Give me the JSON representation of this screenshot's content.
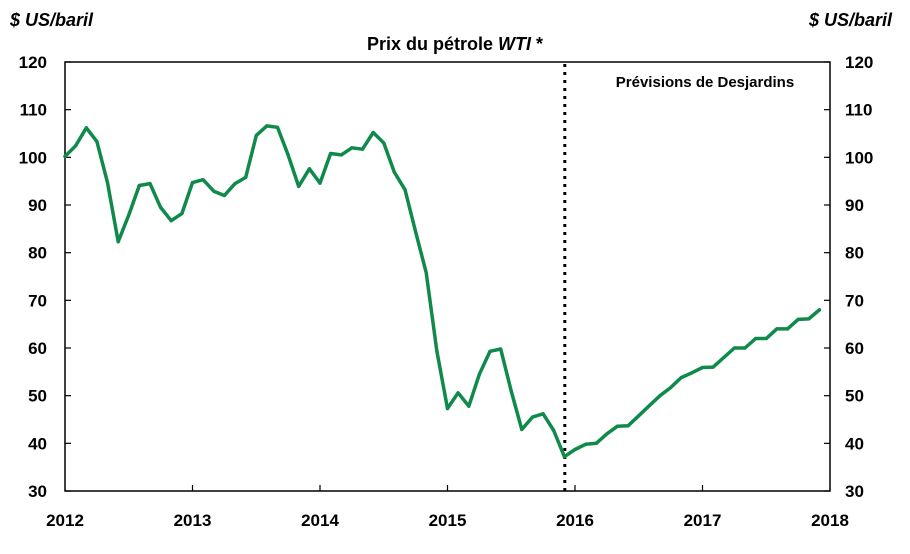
{
  "chart_data": {
    "type": "line",
    "title_prefix": "Prix du pétrole ",
    "title_emph": "WTI",
    "title_suffix": " *",
    "ylabel_left": "$ US/baril",
    "ylabel_right": "$ US/baril",
    "annotation": "Prévisions de Desjardins",
    "ylim": [
      30,
      120
    ],
    "yticks": [
      30,
      40,
      50,
      60,
      70,
      80,
      90,
      100,
      110,
      120
    ],
    "xlim": [
      2012,
      2018
    ],
    "xticks": [
      "2012",
      "2013",
      "2014",
      "2015",
      "2016",
      "2017",
      "2018"
    ],
    "forecast_start": 2015.92,
    "line_color": "#0f8a4a",
    "series": [
      {
        "name": "WTI",
        "x": [
          2012.0,
          2012.083,
          2012.167,
          2012.25,
          2012.333,
          2012.417,
          2012.5,
          2012.583,
          2012.667,
          2012.75,
          2012.833,
          2012.917,
          2013.0,
          2013.083,
          2013.167,
          2013.25,
          2013.333,
          2013.417,
          2013.5,
          2013.583,
          2013.667,
          2013.75,
          2013.833,
          2013.917,
          2014.0,
          2014.083,
          2014.167,
          2014.25,
          2014.333,
          2014.417,
          2014.5,
          2014.583,
          2014.667,
          2014.75,
          2014.833,
          2014.917,
          2015.0,
          2015.083,
          2015.167,
          2015.25,
          2015.333,
          2015.417,
          2015.5,
          2015.583,
          2015.667,
          2015.75,
          2015.833,
          2015.917,
          2016.0,
          2016.083,
          2016.167,
          2016.25,
          2016.333,
          2016.417,
          2016.5,
          2016.583,
          2016.667,
          2016.75,
          2016.833,
          2016.917,
          2017.0,
          2017.083,
          2017.167,
          2017.25,
          2017.333,
          2017.417,
          2017.5,
          2017.583,
          2017.667,
          2017.75,
          2017.833,
          2017.917
        ],
        "values": [
          100.2,
          102.4,
          106.2,
          103.3,
          94.7,
          82.3,
          87.9,
          94.1,
          94.5,
          89.5,
          86.7,
          88.2,
          94.7,
          95.3,
          92.9,
          92.0,
          94.5,
          95.8,
          104.6,
          106.6,
          106.3,
          100.5,
          93.9,
          97.6,
          94.6,
          100.8,
          100.5,
          102.0,
          101.7,
          105.2,
          103.0,
          96.9,
          93.2,
          84.4,
          75.8,
          59.3,
          47.3,
          50.6,
          47.8,
          54.5,
          59.3,
          59.8,
          50.9,
          42.9,
          45.5,
          46.2,
          42.7,
          37.2,
          38.7,
          39.8,
          40.0,
          42.0,
          43.6,
          43.7,
          45.8,
          47.9,
          50.0,
          51.7,
          53.8,
          54.8,
          55.9,
          56.0,
          58.0,
          60.0,
          60.0,
          62.0,
          62.0,
          64.0,
          64.0,
          66.0,
          66.1,
          68.0
        ]
      }
    ]
  }
}
